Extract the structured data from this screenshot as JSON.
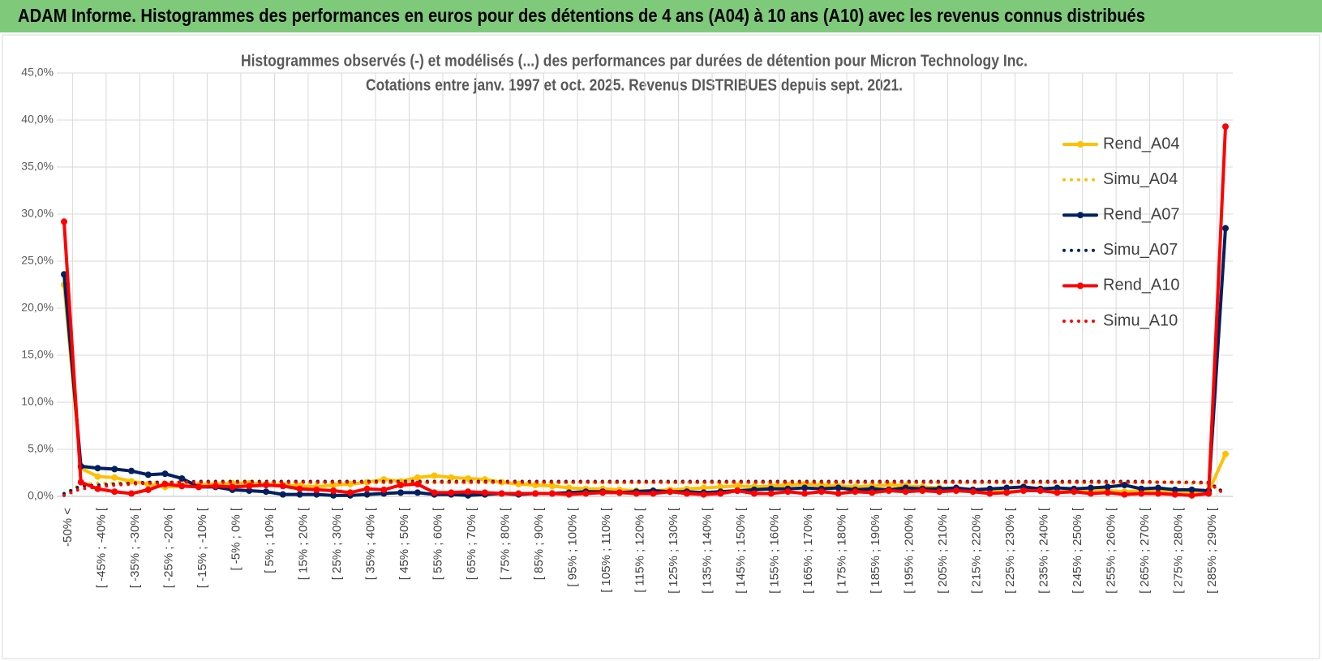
{
  "header": {
    "title": "ADAM Informe. Histogrammes des performances en euros pour des détentions de 4 ans (A04) à 10 ans (A10) avec les revenus connus distribués"
  },
  "chart_data": {
    "type": "line",
    "title": "Histogrammes observés (-) et modélisés (...) des performances par durées de détention pour Micron Technology Inc.",
    "subtitle": "Cotations entre janv. 1997 et oct. 2025.  Revenus DISTRIBUES depuis sept. 2021.",
    "categories": [
      "-50% <",
      null,
      "[ -45% ; -40% [",
      null,
      "[ -35% ; -30% [",
      null,
      "[ -25% ; -20% [",
      null,
      "[ -15% ; -10% [",
      null,
      "[ -5% ; 0% [",
      null,
      "[ 5% ; 10% [",
      null,
      "[ 15% ; 20% [",
      null,
      "[ 25% ; 30% [",
      null,
      "[ 35% ; 40% [",
      null,
      "[ 45% ; 50% [",
      null,
      "[ 55% ; 60% [",
      null,
      "[ 65% ; 70% [",
      null,
      "[ 75% ; 80% [",
      null,
      "[ 85% ; 90% [",
      null,
      "[ 95% ; 100% [",
      null,
      "[ 105% ; 110% [",
      null,
      "[ 115% ; 120% [",
      null,
      "[ 125% ; 130% [",
      null,
      "[ 135% ; 140% [",
      null,
      "[ 145% ; 150% [",
      null,
      "[ 155% ; 160% [",
      null,
      "[ 165% ; 170% [",
      null,
      "[ 175% ; 180% [",
      null,
      "[ 185% ; 190% [",
      null,
      "[ 195% ; 200% [",
      null,
      "[ 205% ; 210% [",
      null,
      "[ 215% ; 220% [",
      null,
      "[ 225% ; 230% [",
      null,
      "[ 235% ; 240% [",
      null,
      "[ 245% ; 250% [",
      null,
      "[ 255% ; 260% [",
      null,
      "[ 265% ; 270% [",
      null,
      "[ 275% ; 280% [",
      null,
      "[ 285% ; 290% [",
      null
    ],
    "ylim": [
      0,
      45
    ],
    "yticks": [
      {
        "value": 0,
        "label": "0,0%"
      },
      {
        "value": 5,
        "label": "5,0%"
      },
      {
        "value": 10,
        "label": "10,0%"
      },
      {
        "value": 15,
        "label": "15,0%"
      },
      {
        "value": 20,
        "label": "20,0%"
      },
      {
        "value": 25,
        "label": "25,0%"
      },
      {
        "value": 30,
        "label": "30,0%"
      },
      {
        "value": 35,
        "label": "35,0%"
      },
      {
        "value": 40,
        "label": "40,0%"
      },
      {
        "value": 45,
        "label": "45,0%"
      }
    ],
    "grid": true,
    "legend": "right",
    "series": [
      {
        "name": "Rend_A04",
        "color": "#FFC000",
        "style": "solid",
        "values": [
          22.5,
          3.0,
          2.1,
          2.0,
          1.6,
          1.3,
          1.0,
          1.1,
          1.2,
          1.3,
          1.4,
          1.4,
          1.3,
          1.2,
          1.1,
          1.0,
          1.2,
          1.3,
          1.5,
          1.8,
          1.6,
          2.0,
          2.2,
          2.0,
          1.9,
          1.8,
          1.5,
          1.3,
          1.2,
          1.1,
          0.9,
          0.8,
          0.8,
          0.7,
          0.6,
          0.6,
          0.7,
          0.8,
          0.9,
          1.0,
          1.1,
          1.0,
          1.1,
          1.2,
          1.3,
          1.2,
          1.1,
          1.0,
          1.1,
          1.2,
          1.1,
          1.0,
          0.9,
          0.8,
          0.7,
          0.6,
          0.5,
          0.6,
          0.7,
          0.5,
          0.6,
          0.7,
          0.6,
          0.5,
          0.6,
          0.7,
          0.5,
          0.4,
          0.5,
          4.5
        ]
      },
      {
        "name": "Simu_A04",
        "color": "#FFC000",
        "style": "dotted",
        "values": [
          0.2,
          1.3,
          1.4,
          1.4,
          1.5,
          1.5,
          1.5,
          1.5,
          1.5,
          1.5,
          1.5,
          1.5,
          1.5,
          1.5,
          1.5,
          1.5,
          1.5,
          1.5,
          1.5,
          1.5,
          1.5,
          1.5,
          1.5,
          1.5,
          1.5,
          1.5,
          1.5,
          1.5,
          1.5,
          1.5,
          1.5,
          1.5,
          1.5,
          1.5,
          1.5,
          1.5,
          1.5,
          1.5,
          1.5,
          1.5,
          1.5,
          1.5,
          1.5,
          1.5,
          1.5,
          1.5,
          1.5,
          1.5,
          1.5,
          1.5,
          1.5,
          1.5,
          1.5,
          1.5,
          1.5,
          1.5,
          1.5,
          1.5,
          1.5,
          1.5,
          1.5,
          1.5,
          1.5,
          1.5,
          1.5,
          1.5,
          1.5,
          1.4,
          1.4,
          0.3
        ]
      },
      {
        "name": "Rend_A07",
        "color": "#002060",
        "style": "solid",
        "values": [
          23.6,
          3.2,
          3.0,
          2.9,
          2.7,
          2.3,
          2.4,
          1.9,
          1.0,
          1.0,
          0.7,
          0.6,
          0.5,
          0.2,
          0.2,
          0.2,
          0.1,
          0.1,
          0.2,
          0.3,
          0.4,
          0.4,
          0.2,
          0.2,
          0.1,
          0.2,
          0.3,
          0.2,
          0.3,
          0.3,
          0.4,
          0.5,
          0.5,
          0.4,
          0.5,
          0.6,
          0.5,
          0.5,
          0.4,
          0.5,
          0.6,
          0.7,
          0.8,
          0.8,
          0.9,
          0.8,
          0.9,
          0.7,
          0.8,
          0.7,
          0.9,
          0.8,
          0.8,
          0.9,
          0.7,
          0.8,
          0.9,
          1.0,
          0.8,
          0.9,
          0.8,
          0.9,
          1.0,
          1.2,
          0.8,
          0.9,
          0.7,
          0.7,
          0.6,
          28.5
        ]
      },
      {
        "name": "Simu_A07",
        "color": "#002060",
        "style": "dotted",
        "values": [
          0.3,
          1.1,
          1.2,
          1.3,
          1.4,
          1.5,
          1.5,
          1.5,
          1.6,
          1.6,
          1.6,
          1.6,
          1.6,
          1.6,
          1.6,
          1.6,
          1.6,
          1.6,
          1.6,
          1.6,
          1.6,
          1.6,
          1.6,
          1.6,
          1.6,
          1.6,
          1.6,
          1.6,
          1.6,
          1.6,
          1.6,
          1.6,
          1.6,
          1.6,
          1.6,
          1.6,
          1.6,
          1.6,
          1.6,
          1.6,
          1.6,
          1.6,
          1.6,
          1.6,
          1.6,
          1.6,
          1.6,
          1.6,
          1.6,
          1.6,
          1.6,
          1.6,
          1.6,
          1.6,
          1.6,
          1.6,
          1.6,
          1.6,
          1.6,
          1.6,
          1.6,
          1.6,
          1.6,
          1.6,
          1.6,
          1.5,
          1.5,
          1.5,
          1.5,
          0.3
        ]
      },
      {
        "name": "Rend_A10",
        "color": "#FF0000",
        "style": "solid",
        "values": [
          29.2,
          1.5,
          0.8,
          0.5,
          0.3,
          0.7,
          1.3,
          1.1,
          1.0,
          1.1,
          1.0,
          1.1,
          1.2,
          1.1,
          0.8,
          0.7,
          0.6,
          0.4,
          0.8,
          0.7,
          1.2,
          1.3,
          0.4,
          0.4,
          0.5,
          0.4,
          0.3,
          0.3,
          0.3,
          0.3,
          0.2,
          0.3,
          0.4,
          0.4,
          0.3,
          0.3,
          0.5,
          0.3,
          0.2,
          0.3,
          0.6,
          0.3,
          0.3,
          0.5,
          0.3,
          0.5,
          0.3,
          0.5,
          0.4,
          0.6,
          0.5,
          0.6,
          0.5,
          0.6,
          0.5,
          0.3,
          0.4,
          0.6,
          0.6,
          0.4,
          0.5,
          0.3,
          0.4,
          0.2,
          0.3,
          0.3,
          0.2,
          0.1,
          0.3,
          39.3
        ]
      },
      {
        "name": "Simu_A10",
        "color": "#FF0000",
        "style": "dotted",
        "values": [
          0.1,
          0.8,
          1.0,
          1.2,
          1.3,
          1.4,
          1.4,
          1.5,
          1.5,
          1.5,
          1.5,
          1.5,
          1.5,
          1.5,
          1.5,
          1.5,
          1.5,
          1.5,
          1.5,
          1.5,
          1.5,
          1.5,
          1.5,
          1.5,
          1.5,
          1.5,
          1.5,
          1.5,
          1.5,
          1.5,
          1.5,
          1.5,
          1.5,
          1.5,
          1.5,
          1.5,
          1.5,
          1.5,
          1.5,
          1.5,
          1.5,
          1.5,
          1.5,
          1.5,
          1.5,
          1.5,
          1.5,
          1.5,
          1.5,
          1.5,
          1.5,
          1.5,
          1.5,
          1.5,
          1.5,
          1.5,
          1.5,
          1.5,
          1.5,
          1.5,
          1.5,
          1.5,
          1.5,
          1.5,
          1.5,
          1.5,
          1.5,
          1.5,
          1.4,
          0.2
        ]
      }
    ]
  }
}
